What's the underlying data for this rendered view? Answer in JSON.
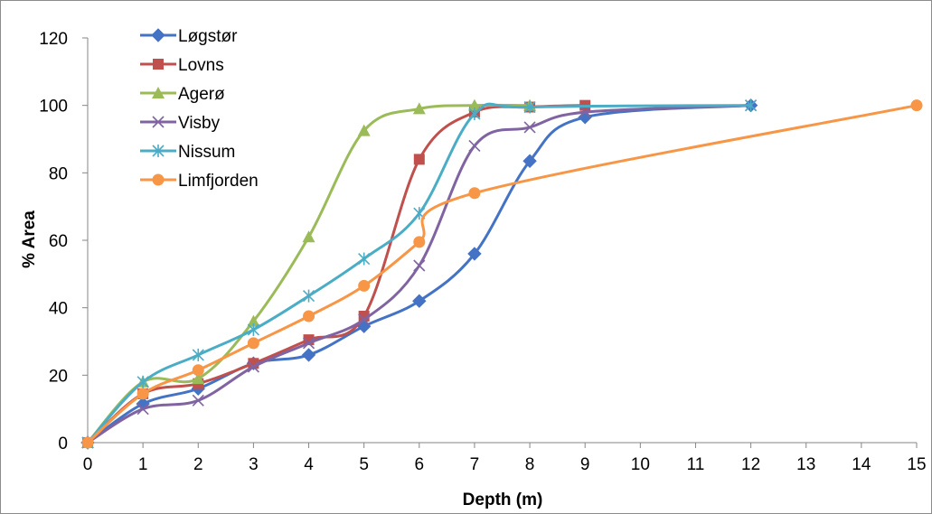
{
  "chart_data": {
    "type": "line",
    "title": "",
    "xlabel": "Depth (m)",
    "ylabel": "% Area",
    "xlim": [
      0,
      15
    ],
    "ylim": [
      0,
      120
    ],
    "x_ticks": [
      "0",
      "1",
      "2",
      "3",
      "4",
      "5",
      "6",
      "7",
      "8",
      "9",
      "10",
      "11",
      "12",
      "13",
      "14",
      "15"
    ],
    "y_ticks": [
      "0",
      "20",
      "40",
      "60",
      "80",
      "100",
      "120"
    ],
    "grid": false,
    "legend_position": "top-left",
    "series": [
      {
        "name": "Løgstør",
        "color": "#4472c4",
        "marker": "diamond",
        "x": [
          0,
          1,
          2,
          3,
          4,
          5,
          6,
          7,
          8,
          9,
          12
        ],
        "y": [
          0,
          11.5,
          16,
          23.5,
          26,
          34.5,
          42,
          56,
          83.5,
          96.5,
          100
        ]
      },
      {
        "name": "Lovns",
        "color": "#c0504d",
        "marker": "square",
        "x": [
          0,
          1,
          2,
          3,
          4,
          5,
          6,
          7,
          8,
          9
        ],
        "y": [
          0,
          14.5,
          17.5,
          23.5,
          30.5,
          37.5,
          84,
          98,
          99.5,
          100
        ]
      },
      {
        "name": "Agerø",
        "color": "#9bbb59",
        "marker": "triangle",
        "x": [
          0,
          1,
          2,
          3,
          4,
          5,
          6,
          7,
          8
        ],
        "y": [
          0,
          18,
          19,
          36,
          61,
          92.5,
          99,
          100,
          100
        ]
      },
      {
        "name": "Visby",
        "color": "#8064a2",
        "marker": "x",
        "x": [
          0,
          1,
          2,
          3,
          4,
          5,
          6,
          7,
          8,
          9,
          12
        ],
        "y": [
          0,
          10,
          12.5,
          22.5,
          29.5,
          36.5,
          52.5,
          88,
          93.5,
          98,
          100
        ]
      },
      {
        "name": "Nissum",
        "color": "#4bacc6",
        "marker": "star",
        "x": [
          0,
          1,
          2,
          3,
          4,
          5,
          6,
          7,
          8,
          12
        ],
        "y": [
          0,
          18,
          26,
          33.5,
          43.5,
          54.5,
          68,
          97.5,
          99.5,
          100
        ]
      },
      {
        "name": "Limfjorden",
        "color": "#f79646",
        "marker": "circle",
        "x": [
          0,
          1,
          2,
          3,
          4,
          5,
          6,
          7,
          15
        ],
        "y": [
          0,
          14.5,
          21.5,
          29.5,
          37.5,
          46.5,
          59.5,
          74,
          100
        ]
      }
    ]
  }
}
